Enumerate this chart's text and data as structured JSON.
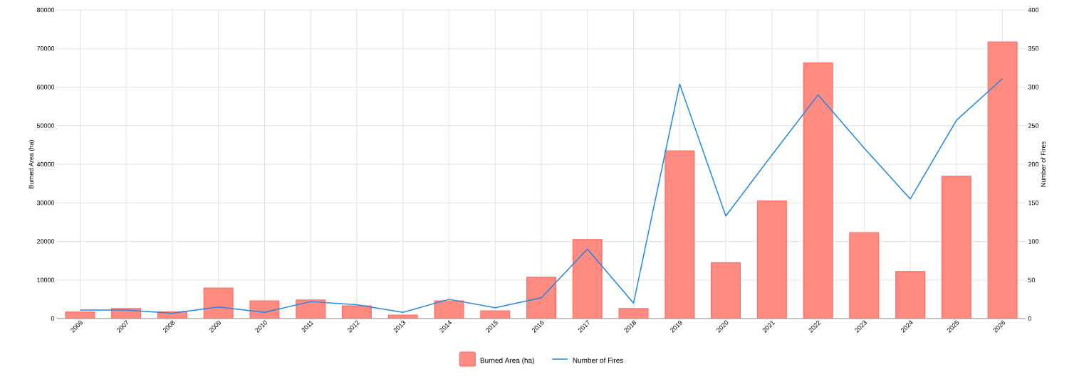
{
  "chart_data": {
    "type": "bar",
    "categories": [
      "2006",
      "2007",
      "2008",
      "2009",
      "2010",
      "2011",
      "2012",
      "2013",
      "2014",
      "2015",
      "2016",
      "2017",
      "2018",
      "2019",
      "2020",
      "2021",
      "2022",
      "2023",
      "2024",
      "2025",
      "2026"
    ],
    "series": [
      {
        "name": "Burned Area (ha)",
        "color": "#ff8a80",
        "values": [
          1700,
          2600,
          1800,
          7900,
          4600,
          4800,
          3300,
          900,
          4600,
          2000,
          10700,
          20500,
          2600,
          43500,
          14500,
          30500,
          66300,
          22300,
          12200,
          36900,
          71700
        ]
      },
      {
        "name": "Number of Fires",
        "type": "line",
        "axis": "y2",
        "color": "#1e88e5",
        "values": [
          11,
          11,
          7,
          15,
          8,
          22,
          18,
          8,
          25,
          14,
          27,
          90,
          20,
          304,
          133,
          212,
          290,
          221,
          155,
          257,
          311
        ]
      }
    ],
    "ylabel": "Burned Area (ha)",
    "y2label": "Number of Fires",
    "ylim": [
      0,
      80000
    ],
    "yticks": [
      0,
      10000,
      20000,
      30000,
      40000,
      50000,
      60000,
      70000,
      80000
    ],
    "y2lim": [
      0,
      400
    ],
    "y2ticks": [
      0,
      50,
      100,
      150,
      200,
      250,
      300,
      350,
      400
    ],
    "grid": true,
    "legend": "bottom",
    "marker": "none",
    "line_style": "solid"
  }
}
